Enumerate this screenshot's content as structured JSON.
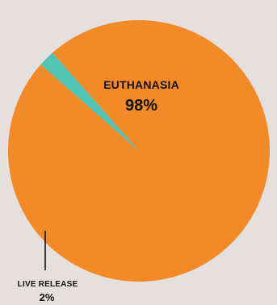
{
  "chart_data": {
    "type": "pie",
    "slices": [
      {
        "label": "EUTHANASIA",
        "value": 98,
        "display": "98%",
        "color": "#f28a28"
      },
      {
        "label": "LIVE RELEASE",
        "value": 2,
        "display": "2%",
        "color": "#4fc4b4"
      }
    ],
    "legend": "none"
  }
}
